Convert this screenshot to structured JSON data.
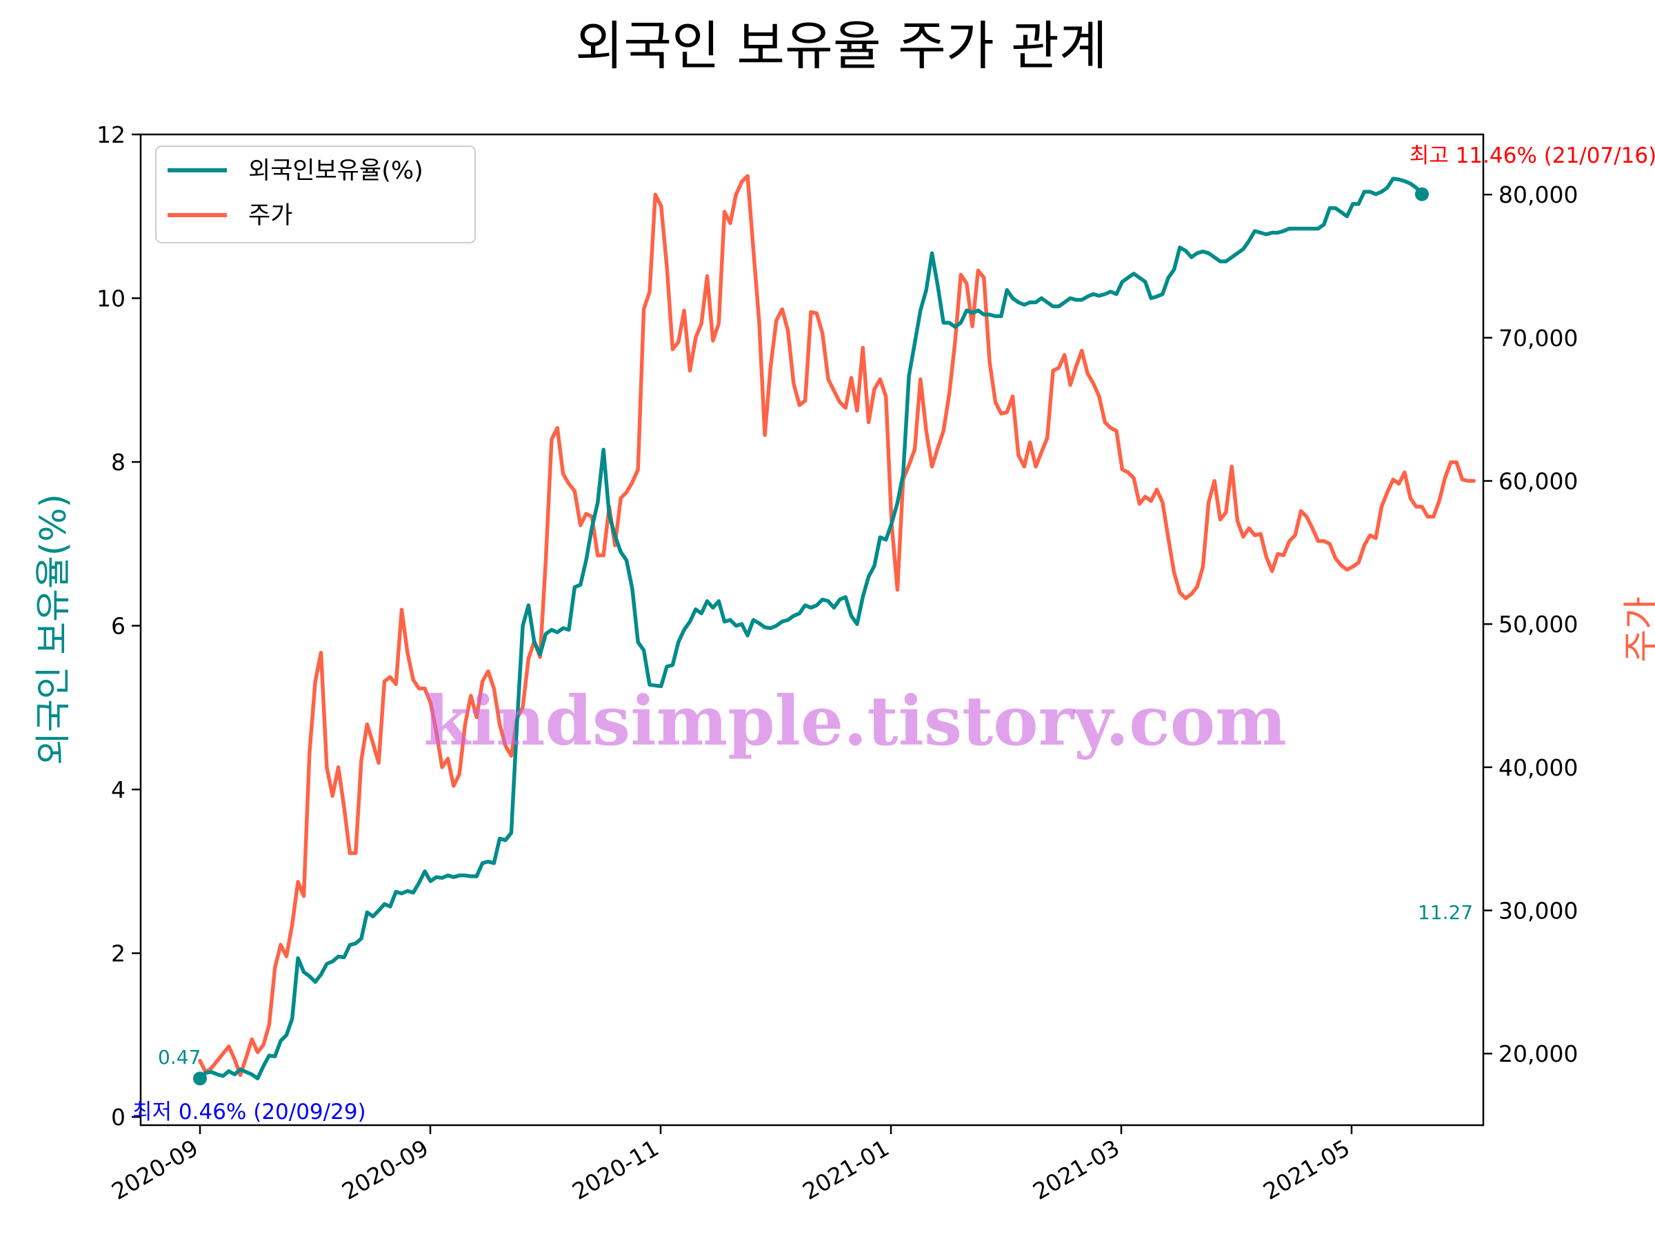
{
  "chart_data": {
    "type": "line",
    "title": "외국인 보유율 주가 관계",
    "ylabel_left": "외국인 보유율(%)",
    "ylabel_right": "주가",
    "x_ticks": [
      "2020-09",
      "2020-09",
      "2020-11",
      "2021-01",
      "2021-03",
      "2021-05"
    ],
    "y_left_ticks": [
      "0",
      "2",
      "4",
      "6",
      "8",
      "10",
      "12"
    ],
    "y_right_ticks": [
      "20,000",
      "30,000",
      "40,000",
      "50,000",
      "60,000",
      "70,000",
      "80,000"
    ],
    "ylim_left": [
      -0.1,
      12
    ],
    "ylim_right": [
      15000,
      84200
    ],
    "grid": false,
    "legend_position": "top-left",
    "colors": {
      "holding": "#008b8b",
      "price": "#ff6347",
      "max": "#ff0000",
      "min": "#0000ff"
    },
    "series": [
      {
        "name": "외국인보유율(%)",
        "values": [
          0.47,
          0.54,
          0.55,
          0.52,
          0.5,
          0.56,
          0.52,
          0.58,
          0.55,
          0.52,
          0.47,
          0.62,
          0.75,
          0.74,
          0.93,
          1.0,
          1.2,
          1.94,
          1.77,
          1.72,
          1.65,
          1.74,
          1.87,
          1.9,
          1.96,
          1.95,
          2.1,
          2.12,
          2.18,
          2.5,
          2.45,
          2.52,
          2.6,
          2.57,
          2.75,
          2.73,
          2.76,
          2.74,
          2.86,
          3.0,
          2.88,
          2.93,
          2.92,
          2.95,
          2.93,
          2.95,
          2.95,
          2.94,
          2.94,
          3.1,
          3.12,
          3.1,
          3.4,
          3.38,
          3.47,
          4.8,
          6.0,
          6.25,
          5.8,
          5.65,
          5.9,
          5.95,
          5.92,
          5.97,
          5.95,
          6.47,
          6.5,
          6.8,
          7.2,
          7.5,
          8.15,
          7.35,
          7.1,
          6.9,
          6.8,
          6.45,
          5.8,
          5.7,
          5.28,
          5.27,
          5.26,
          5.5,
          5.52,
          5.8,
          5.95,
          6.05,
          6.2,
          6.15,
          6.3,
          6.22,
          6.3,
          6.05,
          6.07,
          6.0,
          6.02,
          5.88,
          6.07,
          6.03,
          5.98,
          5.97,
          6.0,
          6.05,
          6.07,
          6.12,
          6.15,
          6.25,
          6.22,
          6.25,
          6.32,
          6.3,
          6.22,
          6.32,
          6.35,
          6.12,
          6.02,
          6.35,
          6.6,
          6.73,
          7.08,
          7.05,
          7.25,
          7.5,
          7.85,
          9.05,
          9.45,
          9.85,
          10.1,
          10.55,
          10.15,
          9.7,
          9.7,
          9.65,
          9.7,
          9.85,
          9.82,
          9.85,
          9.8,
          9.8,
          9.78,
          9.78,
          10.1,
          10.0,
          9.95,
          9.92,
          9.95,
          9.95,
          10.0,
          9.95,
          9.9,
          9.9,
          9.95,
          10.0,
          9.98,
          9.98,
          10.02,
          10.05,
          10.03,
          10.05,
          10.08,
          10.05,
          10.2,
          10.25,
          10.3,
          10.25,
          10.2,
          10.0,
          10.02,
          10.05,
          10.25,
          10.35,
          10.62,
          10.58,
          10.5,
          10.55,
          10.57,
          10.55,
          10.5,
          10.45,
          10.45,
          10.5,
          10.55,
          10.6,
          10.7,
          10.82,
          10.8,
          10.78,
          10.8,
          10.8,
          10.82,
          10.85,
          10.85,
          10.85,
          10.85,
          10.85,
          10.85,
          10.9,
          11.1,
          11.1,
          11.05,
          11.0,
          11.15,
          11.15,
          11.3,
          11.3,
          11.27,
          11.3,
          11.35,
          11.46,
          11.45,
          11.43,
          11.4,
          11.35,
          11.27
        ]
      },
      {
        "name": "주가",
        "values": [
          19500,
          18700,
          19000,
          19500,
          20000,
          20500,
          19600,
          18500,
          19700,
          21000,
          20100,
          20600,
          22000,
          26000,
          27600,
          26800,
          29000,
          32000,
          31000,
          41000,
          46000,
          48000,
          40000,
          38000,
          40000,
          37200,
          34000,
          34000,
          40500,
          43000,
          41700,
          40300,
          46000,
          46300,
          45800,
          51000,
          48000,
          46100,
          45500,
          45500,
          44500,
          42500,
          40000,
          40600,
          38700,
          39500,
          43000,
          45000,
          43500,
          46000,
          46700,
          45500,
          43000,
          41500,
          40800,
          43400,
          44200,
          47600,
          48800,
          47700,
          54500,
          62900,
          63700,
          60500,
          59800,
          59300,
          56900,
          57700,
          57500,
          54800,
          54800,
          58200,
          55500,
          58800,
          59200,
          59900,
          60800,
          72000,
          73200,
          80000,
          79200,
          75000,
          69200,
          69700,
          71900,
          67700,
          70000,
          71000,
          74300,
          69800,
          71000,
          78800,
          78000,
          80000,
          80900,
          81300,
          76200,
          71200,
          63200,
          68000,
          71200,
          72000,
          70500,
          66800,
          65300,
          65600,
          71800,
          71700,
          70300,
          67100,
          66300,
          65500,
          65100,
          67200,
          64900,
          69300,
          64100,
          66400,
          67100,
          65900,
          57000,
          52400,
          60100,
          61100,
          62200,
          67100,
          63500,
          61000,
          62300,
          63500,
          66100,
          69700,
          74400,
          73800,
          70800,
          74700,
          74200,
          68300,
          65500,
          64700,
          64800,
          65900,
          61800,
          61000,
          62700,
          61000,
          62000,
          63000,
          67700,
          67900,
          68800,
          66700,
          68000,
          69100,
          67500,
          66800,
          65900,
          64100,
          63700,
          63500,
          60800,
          60600,
          60200,
          58400,
          58900,
          58600,
          59400,
          58500,
          56000,
          53600,
          52200,
          51800,
          52100,
          52600,
          54000,
          58500,
          60000,
          57300,
          57800,
          61000,
          57200,
          56100,
          56700,
          56200,
          56300,
          54700,
          53700,
          54900,
          54800,
          55800,
          56200,
          57900,
          57500,
          56700,
          55800,
          55800,
          55600,
          54600,
          54100,
          53800,
          54000,
          54300,
          55500,
          56200,
          56000,
          58200,
          59200,
          60100,
          59800,
          60600,
          58800,
          58200,
          58200,
          57500,
          57500,
          58600,
          60200,
          61300,
          61300,
          60100,
          60000,
          60000
        ]
      }
    ],
    "annotations": {
      "max_text": "최고 11.46% (21/07/16)",
      "min_text": "최저 0.46% (20/09/29)",
      "start_value": "0.47",
      "end_value": "11.27"
    },
    "watermark": "kindsimple.tistory.com"
  }
}
